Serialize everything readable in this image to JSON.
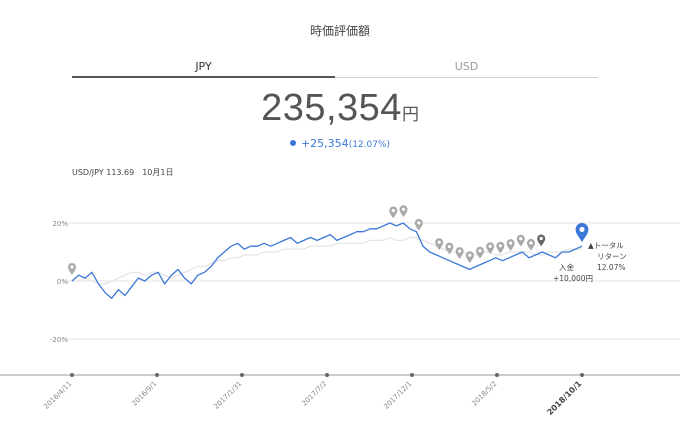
{
  "header": {
    "title": "時価評価額"
  },
  "tabs": [
    {
      "label": "JPY",
      "active": true
    },
    {
      "label": "USD",
      "active": false
    }
  ],
  "summary": {
    "value": "235,354",
    "unit": "円",
    "change": "+25,354",
    "change_pct": "(12.07%)"
  },
  "fx": {
    "rate": "USD/JPY 113.69",
    "date": "10月1日"
  },
  "colors": {
    "accent": "#3c78d8",
    "benchmark": "#e3e3e3",
    "pin": "#a9a9a9",
    "pin_dark": "#666666"
  },
  "chart_data": {
    "type": "line",
    "x_ticks": [
      "2016/4/11",
      "2016/9/1",
      "2017/1/31",
      "2017/7/2",
      "2017/12/1",
      "2018/5/2",
      "2018/10/1"
    ],
    "y_ticks": [
      "20%",
      "0%",
      "-20%"
    ],
    "ylim": [
      -30,
      30
    ],
    "series": [
      {
        "color": "#3c78d8",
        "values": [
          0,
          2,
          1,
          3,
          -1,
          -4,
          -6,
          -3,
          -5,
          -2,
          1,
          0,
          2,
          3,
          -1,
          2,
          4,
          1,
          -1,
          2,
          3,
          5,
          8,
          10,
          12,
          13,
          11,
          12,
          12,
          13,
          12,
          13,
          14,
          15,
          13,
          14,
          15,
          14,
          15,
          16,
          14,
          15,
          16,
          17,
          17,
          18,
          18,
          19,
          20,
          19,
          20,
          18,
          17,
          12,
          10,
          9,
          8,
          7,
          6,
          5,
          4,
          5,
          6,
          7,
          8,
          7,
          8,
          9,
          10,
          8,
          9,
          10,
          9,
          8,
          10,
          10,
          11,
          12
        ]
      },
      {
        "color": "#e3e3e3",
        "values": [
          0,
          0,
          1,
          0,
          -1,
          -1,
          0,
          1,
          2,
          3,
          3,
          2,
          3,
          3,
          2,
          1,
          2,
          3,
          4,
          5,
          5,
          6,
          7,
          7,
          8,
          8,
          9,
          9,
          9,
          10,
          10,
          10,
          11,
          11,
          11,
          11,
          12,
          12,
          12,
          12,
          13,
          13,
          13,
          13,
          13,
          14,
          14,
          14,
          15,
          14,
          14,
          15,
          15,
          14,
          13,
          12,
          11,
          10,
          10,
          10,
          9,
          9,
          10,
          10,
          9,
          9,
          10,
          10,
          10,
          10,
          9,
          9,
          10,
          10,
          10,
          11,
          11,
          11
        ]
      }
    ],
    "event_pins": [
      63,
      65,
      68,
      72,
      74,
      76,
      78,
      80,
      82,
      84,
      86,
      88,
      90,
      92
    ],
    "annotations": {
      "return_label": "▲トータル",
      "return_label2": "リターン",
      "return_value": "12.07%",
      "deposit_label": "入金",
      "deposit_value": "+10,000円"
    }
  }
}
